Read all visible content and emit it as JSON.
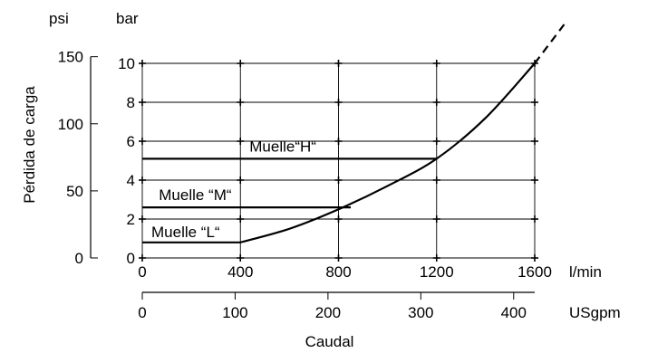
{
  "chart_data": {
    "type": "line",
    "title": "",
    "xlabel": "Caudal",
    "ylabel": "Pérdida de carga",
    "x_unit_primary": "l/min",
    "x_unit_secondary": "USgpm",
    "y_unit_primary": "bar",
    "y_unit_secondary": "psi",
    "xlim": [
      0,
      1600
    ],
    "ylim": [
      0,
      10
    ],
    "grid": true,
    "x_ticks": [
      "0",
      "400",
      "800",
      "1200",
      "1600"
    ],
    "x2_ticks": [
      "0",
      "100",
      "200",
      "300",
      "400"
    ],
    "y_ticks": [
      "0",
      "2",
      "4",
      "6",
      "8",
      "10"
    ],
    "y2_ticks": [
      "0",
      "50",
      "100",
      "150"
    ],
    "curve": {
      "x": [
        400,
        600,
        800,
        1000,
        1200,
        1400,
        1600
      ],
      "y": [
        0.8,
        1.5,
        2.5,
        3.7,
        5.1,
        7.2,
        10.0
      ],
      "extension_x": [
        1600,
        1720
      ],
      "extension_y": [
        10.0,
        12.0
      ]
    },
    "springs": [
      {
        "label": "Muelle “L“",
        "y": 0.8,
        "x_end": 400
      },
      {
        "label": "Muelle “M“",
        "y": 2.6,
        "x_end": 850
      },
      {
        "label": "Muelle“H“",
        "y": 5.1,
        "x_end": 1200
      }
    ]
  }
}
